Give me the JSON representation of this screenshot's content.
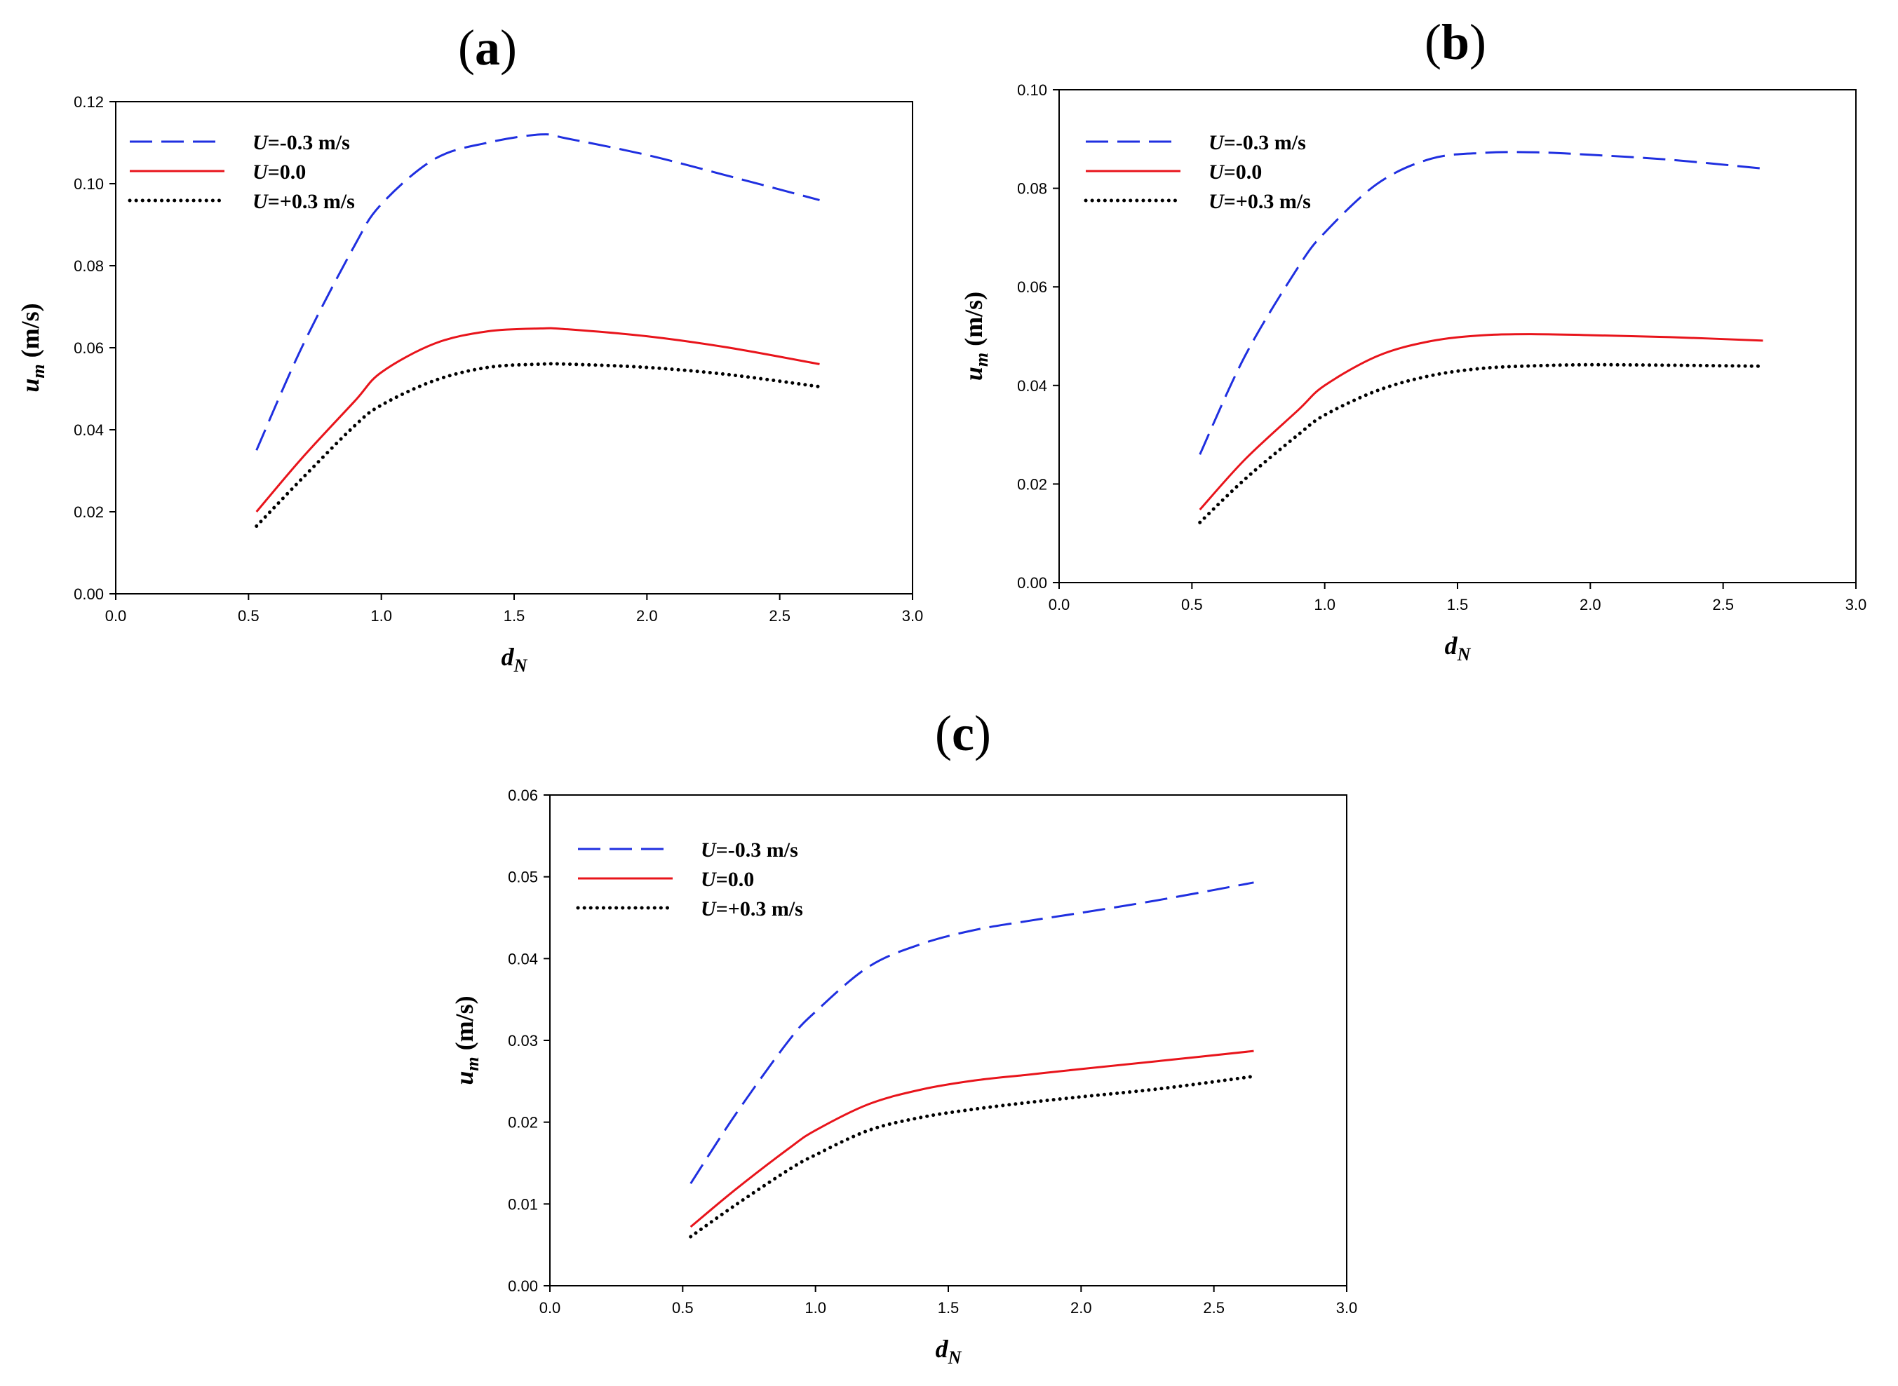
{
  "figure": {
    "y_axis_label": {
      "symbol": "u",
      "subscript": "m",
      "unit": " (m/s)"
    },
    "x_axis_label": {
      "symbol": "d",
      "subscript": "N"
    }
  },
  "legend": [
    {
      "var": "U",
      "text": "=-0.3 m/s",
      "color": "#1f2fe0",
      "style": "dashed"
    },
    {
      "var": "U",
      "text": "=0.0",
      "color": "#e8141b",
      "style": "solid"
    },
    {
      "var": "U",
      "text": "=+0.3 m/s",
      "color": "#000000",
      "style": "dotted"
    }
  ],
  "chart_data": [
    {
      "id": "a",
      "type": "line",
      "panel_label": "(a)",
      "panel_letter": "a",
      "xlim": [
        0,
        3
      ],
      "ylim": [
        0,
        0.12
      ],
      "xticks": [
        0,
        0.5,
        1,
        1.5,
        2,
        2.5,
        3
      ],
      "xtick_labels": [
        "0.0",
        "0.5",
        "1.0",
        "1.5",
        "2.0",
        "2.5",
        "3.0"
      ],
      "yticks": [
        0,
        0.02,
        0.04,
        0.06,
        0.08,
        0.1,
        0.12
      ],
      "ytick_labels": [
        "0.00",
        "0.02",
        "0.04",
        "0.06",
        "0.08",
        "0.10",
        "0.12"
      ],
      "series": [
        {
          "name": "U=-0.3 m/s",
          "x": [
            0.53,
            0.7,
            0.9,
            1.0,
            1.2,
            1.4,
            1.6,
            1.7,
            2.0,
            2.3,
            2.65
          ],
          "y": [
            0.035,
            0.06,
            0.085,
            0.095,
            0.106,
            0.11,
            0.112,
            0.111,
            0.107,
            0.102,
            0.096
          ]
        },
        {
          "name": "U=0.0",
          "x": [
            0.53,
            0.7,
            0.9,
            1.0,
            1.2,
            1.4,
            1.6,
            1.7,
            2.0,
            2.3,
            2.65
          ],
          "y": [
            0.02,
            0.033,
            0.047,
            0.054,
            0.061,
            0.064,
            0.0647,
            0.0645,
            0.0628,
            0.0601,
            0.056
          ]
        },
        {
          "name": "U=+0.3 m/s",
          "x": [
            0.53,
            0.7,
            0.9,
            1.0,
            1.2,
            1.4,
            1.6,
            1.7,
            2.0,
            2.3,
            2.65
          ],
          "y": [
            0.0165,
            0.028,
            0.041,
            0.046,
            0.052,
            0.0552,
            0.056,
            0.056,
            0.0552,
            0.0535,
            0.0505
          ]
        }
      ]
    },
    {
      "id": "b",
      "type": "line",
      "panel_label": "(b)",
      "panel_letter": "b",
      "xlim": [
        0,
        3
      ],
      "ylim": [
        0,
        0.1
      ],
      "xticks": [
        0,
        0.5,
        1,
        1.5,
        2,
        2.5,
        3
      ],
      "xtick_labels": [
        "0.0",
        "0.5",
        "1.0",
        "1.5",
        "2.0",
        "2.5",
        "3.0"
      ],
      "yticks": [
        0,
        0.02,
        0.04,
        0.06,
        0.08,
        0.1
      ],
      "ytick_labels": [
        "0.00",
        "0.02",
        "0.04",
        "0.06",
        "0.08",
        "0.10"
      ],
      "series": [
        {
          "name": "U=-0.3 m/s",
          "x": [
            0.53,
            0.7,
            0.9,
            1.0,
            1.2,
            1.4,
            1.6,
            1.8,
            2.0,
            2.3,
            2.65
          ],
          "y": [
            0.026,
            0.046,
            0.064,
            0.071,
            0.081,
            0.086,
            0.0872,
            0.0873,
            0.0868,
            0.0858,
            0.084
          ]
        },
        {
          "name": "U=0.0",
          "x": [
            0.53,
            0.7,
            0.9,
            1.0,
            1.2,
            1.4,
            1.6,
            1.8,
            2.0,
            2.3,
            2.65
          ],
          "y": [
            0.0148,
            0.025,
            0.035,
            0.04,
            0.046,
            0.049,
            0.0502,
            0.0504,
            0.0502,
            0.0498,
            0.0491
          ]
        },
        {
          "name": "U=+0.3 m/s",
          "x": [
            0.53,
            0.7,
            0.9,
            1.0,
            1.2,
            1.4,
            1.6,
            1.8,
            2.0,
            2.3,
            2.65
          ],
          "y": [
            0.0122,
            0.021,
            0.03,
            0.034,
            0.039,
            0.042,
            0.0435,
            0.044,
            0.0442,
            0.0441,
            0.0439
          ]
        }
      ]
    },
    {
      "id": "c",
      "type": "line",
      "panel_label": "(c)",
      "panel_letter": "c",
      "xlim": [
        0,
        3
      ],
      "ylim": [
        0,
        0.06
      ],
      "xticks": [
        0,
        0.5,
        1,
        1.5,
        2,
        2.5,
        3
      ],
      "xtick_labels": [
        "0.0",
        "0.5",
        "1.0",
        "1.5",
        "2.0",
        "2.5",
        "3.0"
      ],
      "yticks": [
        0,
        0.01,
        0.02,
        0.03,
        0.04,
        0.05,
        0.06
      ],
      "ytick_labels": [
        "0.00",
        "0.01",
        "0.02",
        "0.03",
        "0.04",
        "0.05",
        "0.06"
      ],
      "series": [
        {
          "name": "U=-0.3 m/s",
          "x": [
            0.53,
            0.7,
            0.9,
            1.0,
            1.2,
            1.4,
            1.6,
            1.8,
            2.0,
            2.3,
            2.65
          ],
          "y": [
            0.0125,
            0.021,
            0.03,
            0.0335,
            0.039,
            0.0418,
            0.0435,
            0.0446,
            0.0456,
            0.0472,
            0.0493
          ]
        },
        {
          "name": "U=0.0",
          "x": [
            0.53,
            0.7,
            0.9,
            1.0,
            1.2,
            1.4,
            1.6,
            1.8,
            2.0,
            2.3,
            2.65
          ],
          "y": [
            0.0072,
            0.0118,
            0.0168,
            0.019,
            0.0222,
            0.024,
            0.0251,
            0.0258,
            0.0265,
            0.0275,
            0.0287
          ]
        },
        {
          "name": "U=+0.3 m/s",
          "x": [
            0.53,
            0.7,
            0.9,
            1.0,
            1.2,
            1.4,
            1.6,
            1.8,
            2.0,
            2.3,
            2.65
          ],
          "y": [
            0.006,
            0.0099,
            0.0142,
            0.016,
            0.019,
            0.0206,
            0.0216,
            0.0224,
            0.0231,
            0.0241,
            0.0256
          ]
        }
      ]
    }
  ]
}
